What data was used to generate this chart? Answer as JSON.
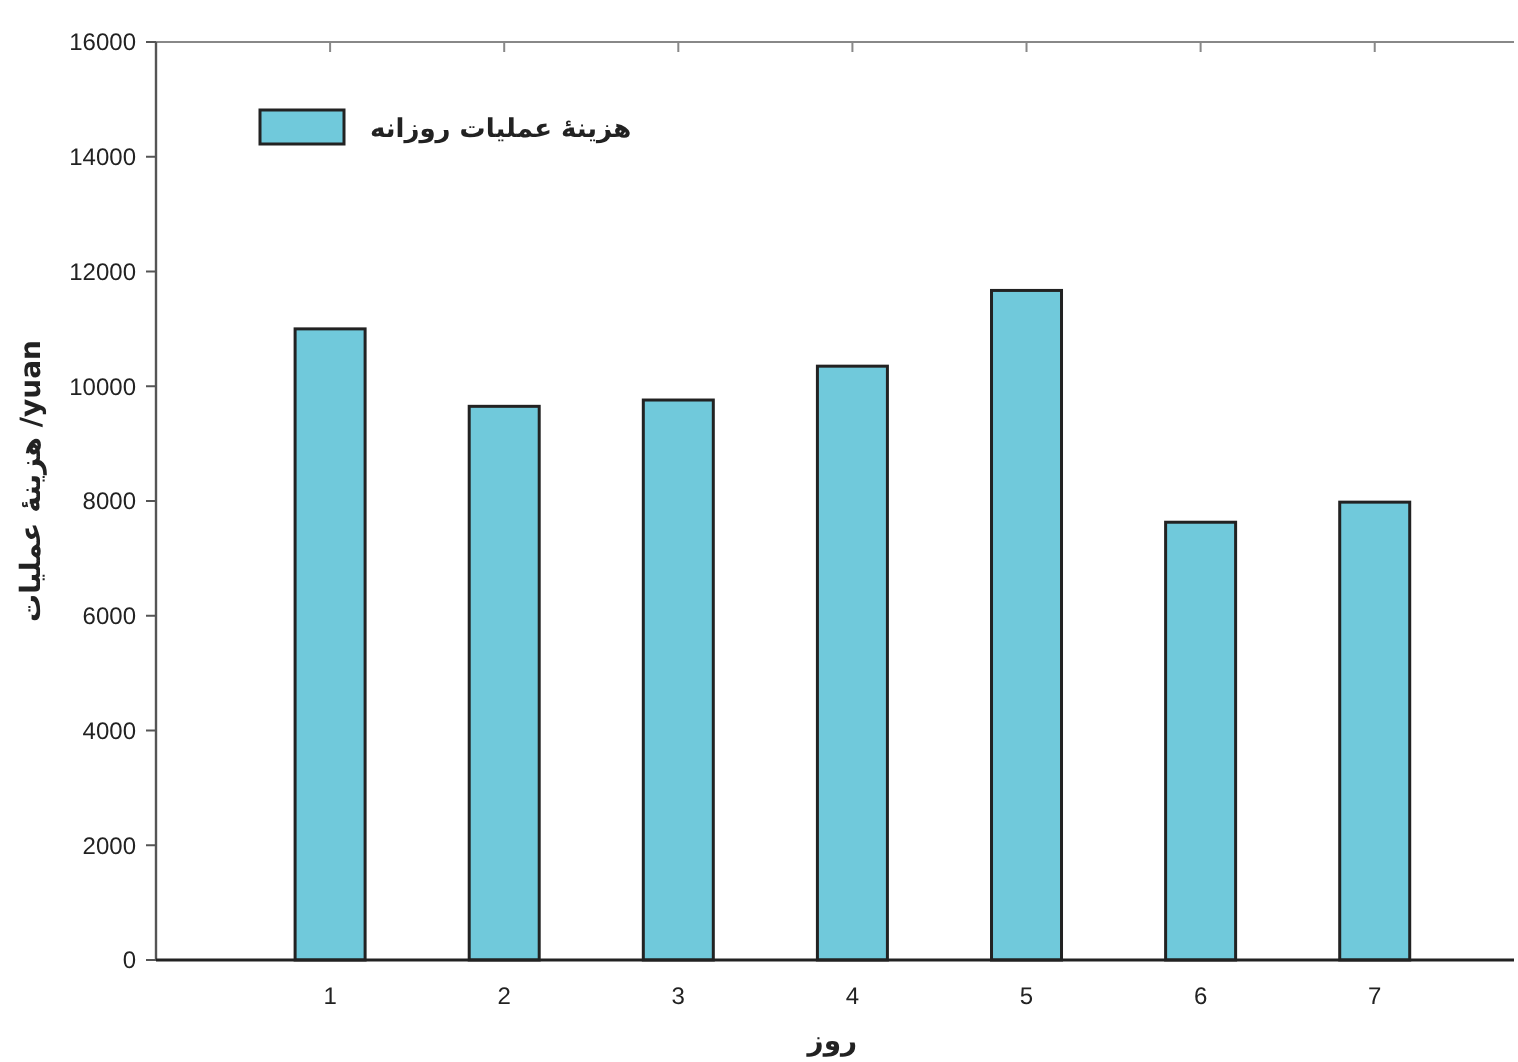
{
  "chart_data": {
    "type": "bar",
    "xlabel": "روز",
    "ylabel": "هزینهٔ عملیات /yuan",
    "categories": [
      "1",
      "2",
      "3",
      "4",
      "5",
      "6",
      "7"
    ],
    "series": [
      {
        "name": "هزینهٔ عملیات روزانه",
        "color": "#70c9db",
        "values": [
          11000,
          9650,
          9760,
          10350,
          11670,
          7630,
          7980
        ]
      }
    ],
    "ylim": [
      0,
      16000
    ],
    "yticks": [
      0,
      2000,
      4000,
      6000,
      8000,
      10000,
      12000,
      14000,
      16000
    ],
    "grid": false,
    "legend": "top left"
  }
}
